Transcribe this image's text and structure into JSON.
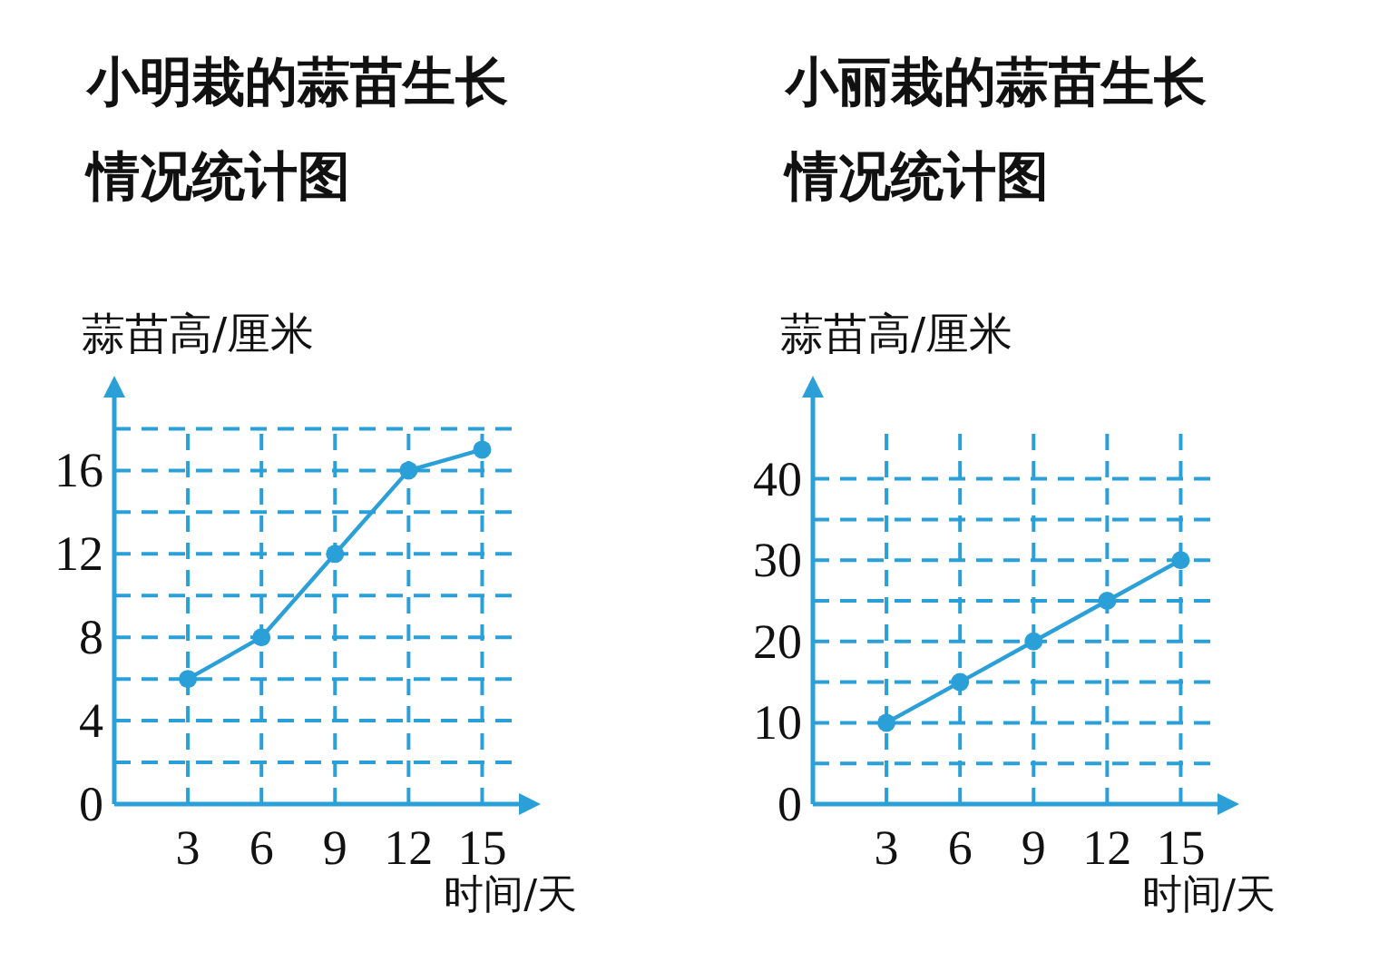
{
  "chart_data": [
    {
      "type": "line",
      "title": "小明栽的蒜苗生长情况统计图",
      "ylabel": "蒜苗高/厘米",
      "xlabel": "时间/天",
      "x": [
        3,
        6,
        9,
        12,
        15
      ],
      "values": [
        6,
        8,
        12,
        16,
        17
      ],
      "color": "#2a9fd8",
      "xlim": [
        0,
        16.5
      ],
      "ylim": [
        0,
        19.5
      ],
      "xticks": [
        3,
        6,
        9,
        12,
        15
      ],
      "yticks": [
        0,
        {
          "value": 2,
          "label": null
        },
        4,
        {
          "value": 6,
          "label": null
        },
        8,
        {
          "value": 10,
          "label": null
        },
        12,
        {
          "value": 14,
          "label": null
        },
        16,
        {
          "value": 18,
          "label": null
        }
      ],
      "grid": true,
      "marker": "circle",
      "line_style": "solid"
    },
    {
      "type": "line",
      "title": "小丽栽的蒜苗生长情况统计图",
      "ylabel": "蒜苗高/厘米",
      "xlabel": "时间/天",
      "x": [
        3,
        6,
        9,
        12,
        15
      ],
      "values": [
        10,
        15,
        20,
        25,
        30
      ],
      "color": "#2a9fd8",
      "xlim": [
        0,
        16.5
      ],
      "ylim": [
        0,
        50
      ],
      "xticks": [
        3,
        6,
        9,
        12,
        15
      ],
      "yticks": [
        0,
        {
          "value": 5,
          "label": null
        },
        10,
        {
          "value": 15,
          "label": null
        },
        20,
        {
          "value": 25,
          "label": null
        },
        30,
        {
          "value": 35,
          "label": null
        },
        40
      ],
      "grid": true,
      "marker": "circle",
      "line_style": "solid"
    }
  ]
}
